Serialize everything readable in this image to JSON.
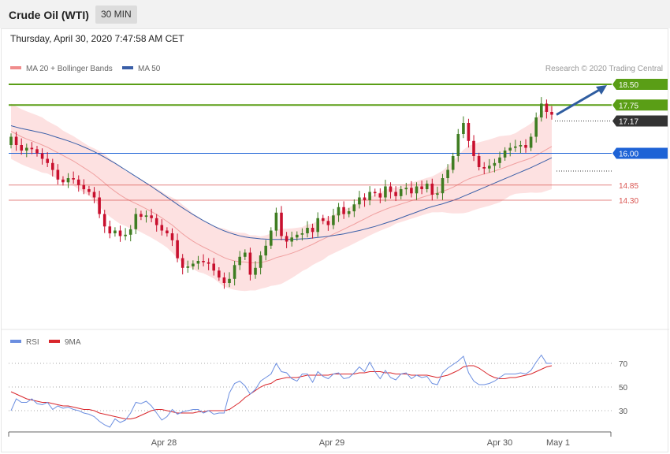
{
  "header": {
    "title": "Crude Oil (WTI)",
    "interval": "30 MIN"
  },
  "timestamp": "Thursday, April 30, 2020 7:47:58 AM CET",
  "legend": {
    "bollinger": "MA 20 + Bollinger Bands",
    "ma50": "MA 50",
    "credit": "Research © 2020 Trading Central"
  },
  "rsi_legend": {
    "rsi": "RSI",
    "ma": "9MA"
  },
  "colors": {
    "candle_up": "#3f7d22",
    "candle_down": "#c8102e",
    "band_fill": "#fde1e1",
    "ma20": "#f0a0a0",
    "ma50": "#3a5fa8",
    "resistance": "#5a9e16",
    "current": "#333333",
    "pivot": "#1e63d6",
    "support": "#d9534f",
    "arrow": "#2f5da0",
    "rsi": "#6b8ee0",
    "rsi_ma": "#d9262b"
  },
  "chart_data": [
    {
      "type": "candlestick",
      "title": "Crude Oil (WTI)",
      "interval": "30 MIN",
      "x_labels": [
        "Apr 28",
        "Apr 29",
        "Apr 30",
        "May 1"
      ],
      "ylim": [
        12.0,
        19.0
      ],
      "levels": [
        {
          "value": 18.5,
          "label": "18.50",
          "kind": "resistance"
        },
        {
          "value": 17.75,
          "label": "17.75",
          "kind": "resistance"
        },
        {
          "value": 17.17,
          "label": "17.17",
          "kind": "current"
        },
        {
          "value": 16.0,
          "label": "16.00",
          "kind": "pivot"
        },
        {
          "value": 14.85,
          "label": "14.85",
          "kind": "support"
        },
        {
          "value": 14.3,
          "label": "14.30",
          "kind": "support"
        }
      ],
      "close": [
        16.6,
        16.3,
        16.1,
        16.2,
        16.15,
        16.0,
        15.8,
        15.65,
        15.4,
        15.05,
        14.95,
        15.1,
        15.05,
        14.85,
        14.7,
        14.6,
        14.4,
        13.8,
        13.35,
        13.1,
        13.2,
        13.0,
        13.05,
        13.25,
        13.8,
        13.7,
        13.75,
        13.65,
        13.4,
        13.2,
        13.1,
        12.85,
        12.2,
        11.85,
        11.9,
        12.0,
        12.1,
        12.05,
        12.0,
        11.75,
        11.5,
        11.3,
        11.45,
        11.95,
        12.25,
        12.4,
        11.6,
        11.85,
        12.3,
        12.65,
        13.2,
        13.85,
        13.0,
        12.8,
        12.95,
        13.05,
        13.1,
        13.3,
        13.15,
        13.65,
        13.55,
        13.4,
        13.75,
        14.05,
        13.8,
        13.9,
        14.15,
        14.4,
        14.3,
        14.6,
        14.55,
        14.4,
        14.8,
        14.6,
        14.45,
        14.7,
        14.75,
        14.55,
        14.8,
        14.7,
        14.9,
        14.5,
        14.55,
        15.1,
        15.4,
        15.9,
        16.7,
        17.1,
        16.45,
        15.9,
        15.5,
        15.45,
        15.55,
        15.65,
        15.85,
        16.1,
        16.2,
        16.25,
        16.3,
        16.2,
        16.6,
        17.3,
        17.8,
        17.5,
        17.4
      ],
      "ma20": [
        16.8,
        16.7,
        16.6,
        16.52,
        16.45,
        16.38,
        16.3,
        16.22,
        16.12,
        16.02,
        15.92,
        15.82,
        15.72,
        15.6,
        15.48,
        15.36,
        15.23,
        15.08,
        14.92,
        14.76,
        14.62,
        14.49,
        14.37,
        14.27,
        14.18,
        14.09,
        13.99,
        13.89,
        13.78,
        13.66,
        13.53,
        13.4,
        13.24,
        13.08,
        12.94,
        12.81,
        12.7,
        12.6,
        12.51,
        12.41,
        12.31,
        12.22,
        12.15,
        12.1,
        12.07,
        12.06,
        12.03,
        12.03,
        12.04,
        12.08,
        12.14,
        12.22,
        12.27,
        12.32,
        12.38,
        12.45,
        12.53,
        12.62,
        12.7,
        12.8,
        12.89,
        12.98,
        13.07,
        13.16,
        13.25,
        13.34,
        13.43,
        13.53,
        13.62,
        13.72,
        13.81,
        13.89,
        13.97,
        14.04,
        14.1,
        14.16,
        14.22,
        14.28,
        14.34,
        14.4,
        14.46,
        14.51,
        14.56,
        14.62,
        14.69,
        14.77,
        14.87,
        14.98,
        15.07,
        15.14,
        15.2,
        15.25,
        15.3,
        15.36,
        15.42,
        15.49,
        15.56,
        15.63,
        15.7,
        15.76,
        15.83,
        15.92,
        16.03,
        16.14,
        16.25
      ],
      "ma50": [
        17.0,
        16.95,
        16.9,
        16.86,
        16.82,
        16.78,
        16.74,
        16.69,
        16.63,
        16.57,
        16.51,
        16.45,
        16.38,
        16.31,
        16.23,
        16.15,
        16.06,
        15.96,
        15.86,
        15.75,
        15.64,
        15.52,
        15.4,
        15.28,
        15.16,
        15.04,
        14.92,
        14.8,
        14.67,
        14.54,
        14.41,
        14.28,
        14.15,
        14.02,
        13.9,
        13.78,
        13.67,
        13.56,
        13.46,
        13.36,
        13.27,
        13.19,
        13.12,
        13.06,
        13.01,
        12.97,
        12.94,
        12.92,
        12.9,
        12.89,
        12.88,
        12.88,
        12.88,
        12.88,
        12.88,
        12.89,
        12.9,
        12.91,
        12.93,
        12.95,
        12.97,
        12.99,
        13.02,
        13.05,
        13.08,
        13.12,
        13.16,
        13.2,
        13.25,
        13.3,
        13.35,
        13.41,
        13.47,
        13.53,
        13.59,
        13.66,
        13.73,
        13.8,
        13.87,
        13.94,
        14.01,
        14.07,
        14.12,
        14.17,
        14.23,
        14.29,
        14.36,
        14.44,
        14.52,
        14.6,
        14.68,
        14.76,
        14.84,
        14.92,
        15.0,
        15.08,
        15.16,
        15.24,
        15.32,
        15.4,
        15.48,
        15.57,
        15.66,
        15.75,
        15.84
      ],
      "band_width": [
        1.0,
        1.0,
        1.0,
        1.0,
        1.0,
        1.0,
        1.0,
        0.95,
        0.95,
        0.95,
        0.9,
        0.9,
        0.9,
        0.9,
        0.9,
        0.9,
        0.95,
        1.0,
        1.05,
        1.05,
        1.05,
        1.05,
        1.0,
        1.0,
        0.95,
        0.95,
        0.95,
        0.95,
        0.95,
        0.95,
        0.95,
        1.0,
        1.05,
        1.05,
        1.05,
        1.0,
        1.0,
        0.95,
        0.95,
        0.95,
        1.0,
        1.05,
        1.05,
        1.05,
        1.05,
        1.05,
        1.0,
        1.0,
        0.95,
        0.95,
        0.95,
        1.0,
        1.0,
        0.95,
        0.9,
        0.85,
        0.8,
        0.8,
        0.75,
        0.75,
        0.75,
        0.7,
        0.7,
        0.7,
        0.7,
        0.7,
        0.7,
        0.7,
        0.7,
        0.7,
        0.7,
        0.7,
        0.7,
        0.7,
        0.65,
        0.65,
        0.65,
        0.65,
        0.65,
        0.65,
        0.65,
        0.65,
        0.7,
        0.75,
        0.85,
        0.95,
        1.05,
        1.15,
        1.2,
        1.2,
        1.2,
        1.2,
        1.2,
        1.2,
        1.2,
        1.15,
        1.1,
        1.1,
        1.15,
        1.2,
        1.25,
        1.35,
        1.45,
        1.5,
        1.55
      ]
    },
    {
      "type": "line",
      "title": "RSI",
      "ylim": [
        10,
        90
      ],
      "y_ticks": [
        70,
        50,
        30
      ],
      "series": [
        {
          "name": "RSI",
          "values": [
            30,
            40,
            37,
            37,
            40,
            36,
            35,
            37,
            31,
            34,
            32,
            33,
            31,
            30,
            28,
            27,
            25,
            21,
            18,
            16,
            23,
            20,
            22,
            28,
            37,
            36,
            38,
            34,
            28,
            22,
            25,
            31,
            27,
            29,
            30,
            31,
            31,
            28,
            30,
            27,
            28,
            28,
            45,
            53,
            55,
            51,
            44,
            48,
            55,
            58,
            61,
            70,
            63,
            62,
            57,
            55,
            61,
            61,
            54,
            63,
            59,
            57,
            61,
            62,
            57,
            58,
            62,
            67,
            63,
            71,
            63,
            57,
            64,
            58,
            56,
            61,
            62,
            57,
            60,
            58,
            59,
            53,
            52,
            62,
            66,
            69,
            72,
            76,
            62,
            55,
            52,
            52,
            53,
            55,
            58,
            61,
            61,
            61,
            62,
            61,
            64,
            71,
            77,
            70,
            70
          ]
        },
        {
          "name": "9MA",
          "values": [
            46,
            44,
            42,
            40,
            39,
            38,
            37,
            37,
            36,
            35,
            34,
            34,
            33,
            32,
            31,
            31,
            30,
            28,
            27,
            26,
            25,
            24,
            23,
            23,
            24,
            26,
            28,
            30,
            31,
            31,
            30,
            29,
            28,
            28,
            28,
            28,
            29,
            29,
            30,
            30,
            30,
            30,
            31,
            34,
            37,
            41,
            44,
            47,
            50,
            52,
            53,
            56,
            57,
            58,
            58,
            58,
            59,
            60,
            60,
            60,
            60,
            60,
            61,
            61,
            61,
            61,
            61,
            62,
            62,
            63,
            63,
            63,
            62,
            62,
            61,
            61,
            61,
            60,
            60,
            60,
            60,
            59,
            58,
            59,
            60,
            62,
            64,
            67,
            68,
            68,
            66,
            63,
            60,
            58,
            57,
            57,
            58,
            58,
            59,
            60,
            61,
            63,
            65,
            67,
            68
          ]
        }
      ]
    }
  ]
}
